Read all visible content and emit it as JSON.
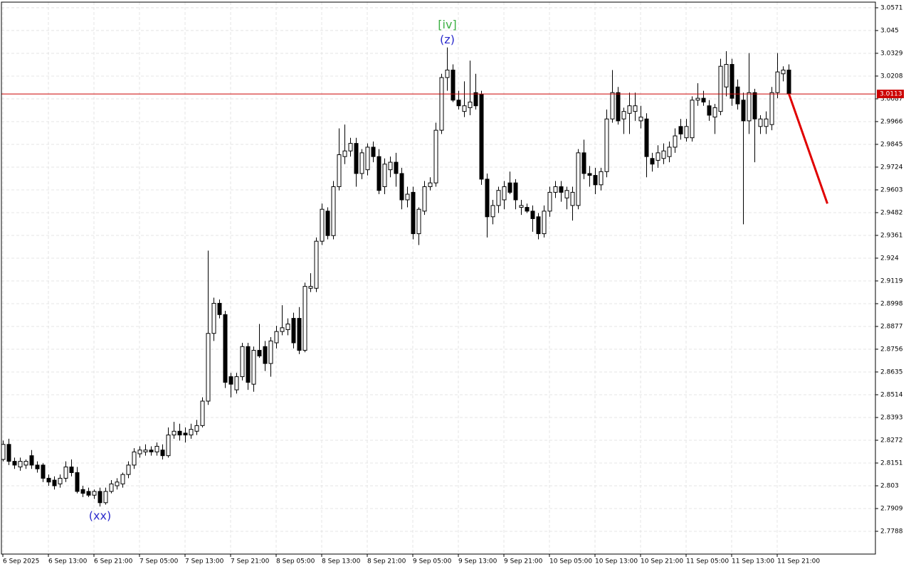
{
  "chart_data": {
    "type": "candlestick",
    "categories": [
      "6 Sep 2025",
      null,
      null,
      null,
      null,
      null,
      null,
      null,
      "6 Sep 13:00",
      null,
      null,
      null,
      null,
      null,
      null,
      null,
      "6 Sep 21:00",
      null,
      null,
      null,
      null,
      null,
      null,
      null,
      "7 Sep 05:00",
      null,
      null,
      null,
      null,
      null,
      null,
      null,
      "7 Sep 13:00",
      null,
      null,
      null,
      null,
      null,
      null,
      null,
      "7 Sep 21:00",
      null,
      null,
      null,
      null,
      null,
      null,
      null,
      "8 Sep 05:00",
      null,
      null,
      null,
      null,
      null,
      null,
      null,
      "8 Sep 13:00",
      null,
      null,
      null,
      null,
      null,
      null,
      null,
      "8 Sep 21:00",
      null,
      null,
      null,
      null,
      null,
      null,
      null,
      "9 Sep 05:00",
      null,
      null,
      null,
      null,
      null,
      null,
      null,
      "9 Sep 13:00",
      null,
      null,
      null,
      null,
      null,
      null,
      null,
      "9 Sep 21:00",
      null,
      null,
      null,
      null,
      null,
      null,
      null,
      "10 Sep 05:00",
      null,
      null,
      null,
      null,
      null,
      null,
      null,
      "10 Sep 13:00",
      null,
      null,
      null,
      null,
      null,
      null,
      null,
      "10 Sep 21:00",
      null,
      null,
      null,
      null,
      null,
      null,
      null,
      "11 Sep 05:00",
      null,
      null,
      null,
      null,
      null,
      null,
      null,
      "11 Sep 13:00",
      null,
      null,
      null,
      null,
      null,
      null,
      null,
      "11 Sep 21:00",
      null,
      null
    ],
    "open": [
      2.817,
      2.825,
      2.816,
      2.813,
      2.814,
      2.819,
      2.814,
      2.814,
      2.807,
      2.806,
      2.804,
      2.807,
      2.813,
      2.81,
      2.801,
      2.8,
      2.798,
      2.8,
      2.794,
      2.8,
      2.803,
      2.804,
      2.809,
      2.814,
      2.82,
      2.821,
      2.822,
      2.821,
      2.822,
      2.819,
      2.83,
      2.832,
      2.831,
      2.83,
      2.832,
      2.835,
      2.848,
      2.884,
      2.9,
      2.894,
      2.861,
      2.854,
      2.861,
      2.877,
      2.857,
      2.875,
      2.877,
      2.868,
      2.879,
      2.885,
      2.886,
      2.892,
      2.892,
      2.875,
      2.908,
      2.908,
      2.933,
      2.949,
      2.936,
      2.962,
      2.978,
      2.981,
      2.985,
      2.969,
      2.971,
      2.983,
      2.978,
      2.962,
      2.971,
      2.975,
      2.969,
      2.955,
      2.959,
      2.937,
      2.949,
      2.962,
      2.964,
      2.992,
      3.02,
      3.024,
      3.008,
      3.002,
      3.004,
      3.012,
      3.011,
      2.966,
      2.946,
      2.952,
      2.955,
      2.964,
      2.964,
      2.951,
      2.951,
      2.949,
      2.946,
      2.937,
      2.949,
      2.959,
      2.962,
      2.956,
      2.952,
      2.952,
      2.98,
      2.969,
      2.968,
      2.963,
      2.97,
      2.998,
      3.012,
      2.998,
      3.001,
      3.002,
      2.997,
      2.998,
      2.977,
      2.976,
      2.977,
      2.978,
      2.983,
      2.994,
      2.988,
      2.988,
      3.008,
      3.009,
      3.005,
      2.999,
      3.002,
      3.015,
      3.027,
      3.015,
      3.008,
      2.997,
      3.012,
      2.994,
      2.994,
      2.995,
      3.012,
      3.022,
      3.024
    ],
    "high": [
      2.827,
      2.828,
      2.818,
      2.818,
      2.817,
      2.822,
      2.816,
      2.815,
      2.809,
      2.808,
      2.809,
      2.816,
      2.817,
      2.813,
      2.803,
      2.802,
      2.801,
      2.802,
      2.802,
      2.806,
      2.807,
      2.81,
      2.816,
      2.823,
      2.824,
      2.825,
      2.824,
      2.826,
      2.825,
      2.834,
      2.837,
      2.836,
      2.834,
      2.836,
      2.838,
      2.85,
      2.928,
      2.903,
      2.902,
      2.896,
      2.863,
      2.863,
      2.879,
      2.879,
      2.877,
      2.889,
      2.88,
      2.882,
      2.888,
      2.899,
      2.892,
      2.895,
      2.898,
      2.911,
      2.916,
      2.935,
      2.953,
      2.951,
      2.965,
      2.993,
      2.995,
      2.988,
      2.988,
      2.982,
      2.985,
      2.986,
      2.982,
      2.977,
      2.978,
      2.98,
      2.972,
      2.962,
      2.962,
      2.951,
      2.965,
      2.967,
      2.996,
      3.022,
      3.036,
      3.027,
      3.013,
      3.018,
      3.029,
      3.022,
      3.013,
      2.969,
      2.955,
      2.962,
      2.965,
      2.97,
      2.966,
      2.955,
      2.953,
      2.952,
      2.948,
      2.952,
      2.962,
      2.965,
      2.965,
      2.962,
      2.962,
      2.982,
      2.987,
      2.973,
      2.972,
      2.972,
      3.003,
      3.024,
      3.015,
      3.004,
      3.012,
      3.012,
      3.005,
      3.001,
      2.98,
      2.984,
      2.985,
      2.986,
      2.993,
      2.998,
      2.998,
      3.01,
      3.017,
      3.013,
      3.008,
      3.006,
      3.03,
      3.034,
      3.03,
      3.019,
      3.012,
      3.033,
      3.014,
      3.0,
      3.002,
      3.015,
      3.033,
      3.026,
      3.027
    ],
    "low": [
      2.816,
      2.814,
      2.812,
      2.811,
      2.812,
      2.812,
      2.81,
      2.805,
      2.803,
      2.801,
      2.802,
      2.805,
      2.808,
      2.799,
      2.797,
      2.797,
      2.796,
      2.792,
      2.793,
      2.799,
      2.801,
      2.802,
      2.807,
      2.812,
      2.818,
      2.819,
      2.819,
      2.819,
      2.817,
      2.818,
      2.828,
      2.827,
      2.826,
      2.828,
      2.83,
      2.834,
      2.846,
      2.88,
      2.892,
      2.855,
      2.85,
      2.852,
      2.859,
      2.854,
      2.853,
      2.871,
      2.864,
      2.861,
      2.876,
      2.883,
      2.883,
      2.876,
      2.873,
      2.874,
      2.906,
      2.906,
      2.931,
      2.934,
      2.934,
      2.96,
      2.974,
      2.978,
      2.962,
      2.966,
      2.968,
      2.975,
      2.958,
      2.958,
      2.967,
      2.962,
      2.95,
      2.951,
      2.934,
      2.931,
      2.947,
      2.96,
      2.962,
      2.99,
      3.013,
      3.007,
      3.003,
      2.999,
      3.0,
      3.003,
      2.963,
      2.935,
      2.942,
      2.948,
      2.95,
      2.958,
      2.95,
      2.947,
      2.948,
      2.938,
      2.934,
      2.935,
      2.946,
      2.956,
      2.954,
      2.95,
      2.944,
      2.95,
      2.966,
      2.962,
      2.958,
      2.96,
      2.967,
      2.996,
      2.995,
      2.99,
      2.99,
      2.997,
      2.993,
      2.967,
      2.97,
      2.972,
      2.974,
      2.975,
      2.98,
      2.987,
      2.986,
      2.986,
      3.005,
      3.005,
      2.997,
      2.99,
      3.0,
      3.01,
      3.005,
      3.003,
      2.942,
      2.99,
      2.975,
      2.99,
      2.99,
      2.992,
      3.009,
      3.018,
      3.011
    ],
    "close": [
      2.825,
      2.816,
      2.814,
      2.816,
      2.816,
      2.814,
      2.812,
      2.807,
      2.805,
      2.803,
      2.807,
      2.813,
      2.81,
      2.8,
      2.799,
      2.798,
      2.8,
      2.794,
      2.8,
      2.804,
      2.805,
      2.809,
      2.814,
      2.821,
      2.822,
      2.822,
      2.821,
      2.824,
      2.819,
      2.83,
      2.832,
      2.83,
      2.83,
      2.833,
      2.835,
      2.848,
      2.884,
      2.9,
      2.894,
      2.858,
      2.857,
      2.861,
      2.877,
      2.858,
      2.875,
      2.872,
      2.868,
      2.88,
      2.885,
      2.887,
      2.889,
      2.879,
      2.875,
      2.909,
      2.909,
      2.933,
      2.95,
      2.936,
      2.962,
      2.979,
      2.981,
      2.985,
      2.969,
      2.98,
      2.983,
      2.978,
      2.96,
      2.974,
      2.975,
      2.969,
      2.955,
      2.958,
      2.937,
      2.95,
      2.962,
      2.964,
      2.992,
      3.02,
      3.024,
      3.008,
      3.005,
      3.005,
      3.007,
      3.005,
      2.966,
      2.946,
      2.952,
      2.96,
      2.962,
      2.959,
      2.955,
      2.952,
      2.949,
      2.945,
      2.937,
      2.949,
      2.959,
      2.962,
      2.959,
      2.96,
      2.959,
      2.98,
      2.969,
      2.968,
      2.963,
      2.97,
      2.998,
      3.012,
      2.997,
      3.002,
      3.005,
      3.005,
      2.999,
      2.978,
      2.974,
      2.98,
      2.981,
      2.983,
      2.989,
      2.99,
      2.994,
      3.008,
      3.009,
      3.007,
      3.0,
      3.004,
      3.026,
      3.027,
      3.009,
      3.006,
      2.997,
      3.012,
      2.998,
      2.998,
      2.998,
      3.012,
      3.023,
      3.024,
      3.0113
    ],
    "up_color": "#ffffff",
    "down_color": "#000000",
    "ylim": [
      2.7667,
      3.0601
    ],
    "yticks": [
      3.0571,
      3.045,
      3.0329,
      3.0208,
      3.0087,
      2.9966,
      2.9845,
      2.9724,
      2.9603,
      2.9482,
      2.9361,
      2.924,
      2.9119,
      2.8998,
      2.8877,
      2.8756,
      2.8635,
      2.8514,
      2.8393,
      2.8272,
      2.8151,
      2.803,
      2.7909,
      2.7788
    ],
    "grid": true,
    "current_price": 3.0113,
    "current_price_color": "#cc0000",
    "annotations": [
      {
        "text": "[iv]",
        "at": 78,
        "color": "#3cb043",
        "side": "above"
      },
      {
        "text": "(z)",
        "at": 78,
        "color": "#2b2bcc",
        "side": "above"
      },
      {
        "text": "(xx)",
        "at": 17,
        "color": "#2b2bcc",
        "side": "below"
      }
    ],
    "forecast": {
      "x": [
        138,
        144.75
      ],
      "values": [
        3.0113,
        2.953
      ],
      "color": "#e00000"
    }
  }
}
